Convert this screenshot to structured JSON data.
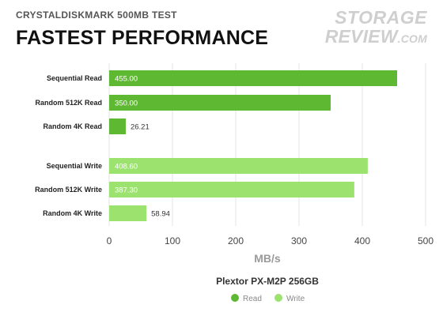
{
  "header": {
    "subtitle": "CRYSTALDISKMARK 500MB TEST",
    "title": "FASTEST PERFORMANCE"
  },
  "logo": {
    "line1": "STORAGE",
    "line2": "REVIEW",
    "line2_suffix": ".COM"
  },
  "colors": {
    "read": "#5fb832",
    "write": "#9be26e",
    "grid": "#e3e3e3"
  },
  "chart_data": {
    "type": "bar",
    "orientation": "horizontal",
    "title": "FASTEST PERFORMANCE",
    "subtitle": "CRYSTALDISKMARK 500MB TEST",
    "xlabel": "MB/s",
    "xlim": [
      0,
      500
    ],
    "xticks": [
      0,
      100,
      200,
      300,
      400,
      500
    ],
    "grid": true,
    "legend_title": "Plextor PX-M2P 256GB",
    "legend_position": "bottom",
    "categories": [
      "Sequential Read",
      "Random 512K Read",
      "Random 4K Read",
      "Sequential Write",
      "Random 512K Write",
      "Random 4K Write"
    ],
    "values": [
      455.0,
      350.0,
      26.21,
      408.6,
      387.3,
      58.94
    ],
    "value_labels": [
      "455.00",
      "350.00",
      "26.21",
      "408.60",
      "387.30",
      "58.94"
    ],
    "series_of_category": [
      "Read",
      "Read",
      "Read",
      "Write",
      "Write",
      "Write"
    ],
    "legend": [
      "Read",
      "Write"
    ]
  }
}
